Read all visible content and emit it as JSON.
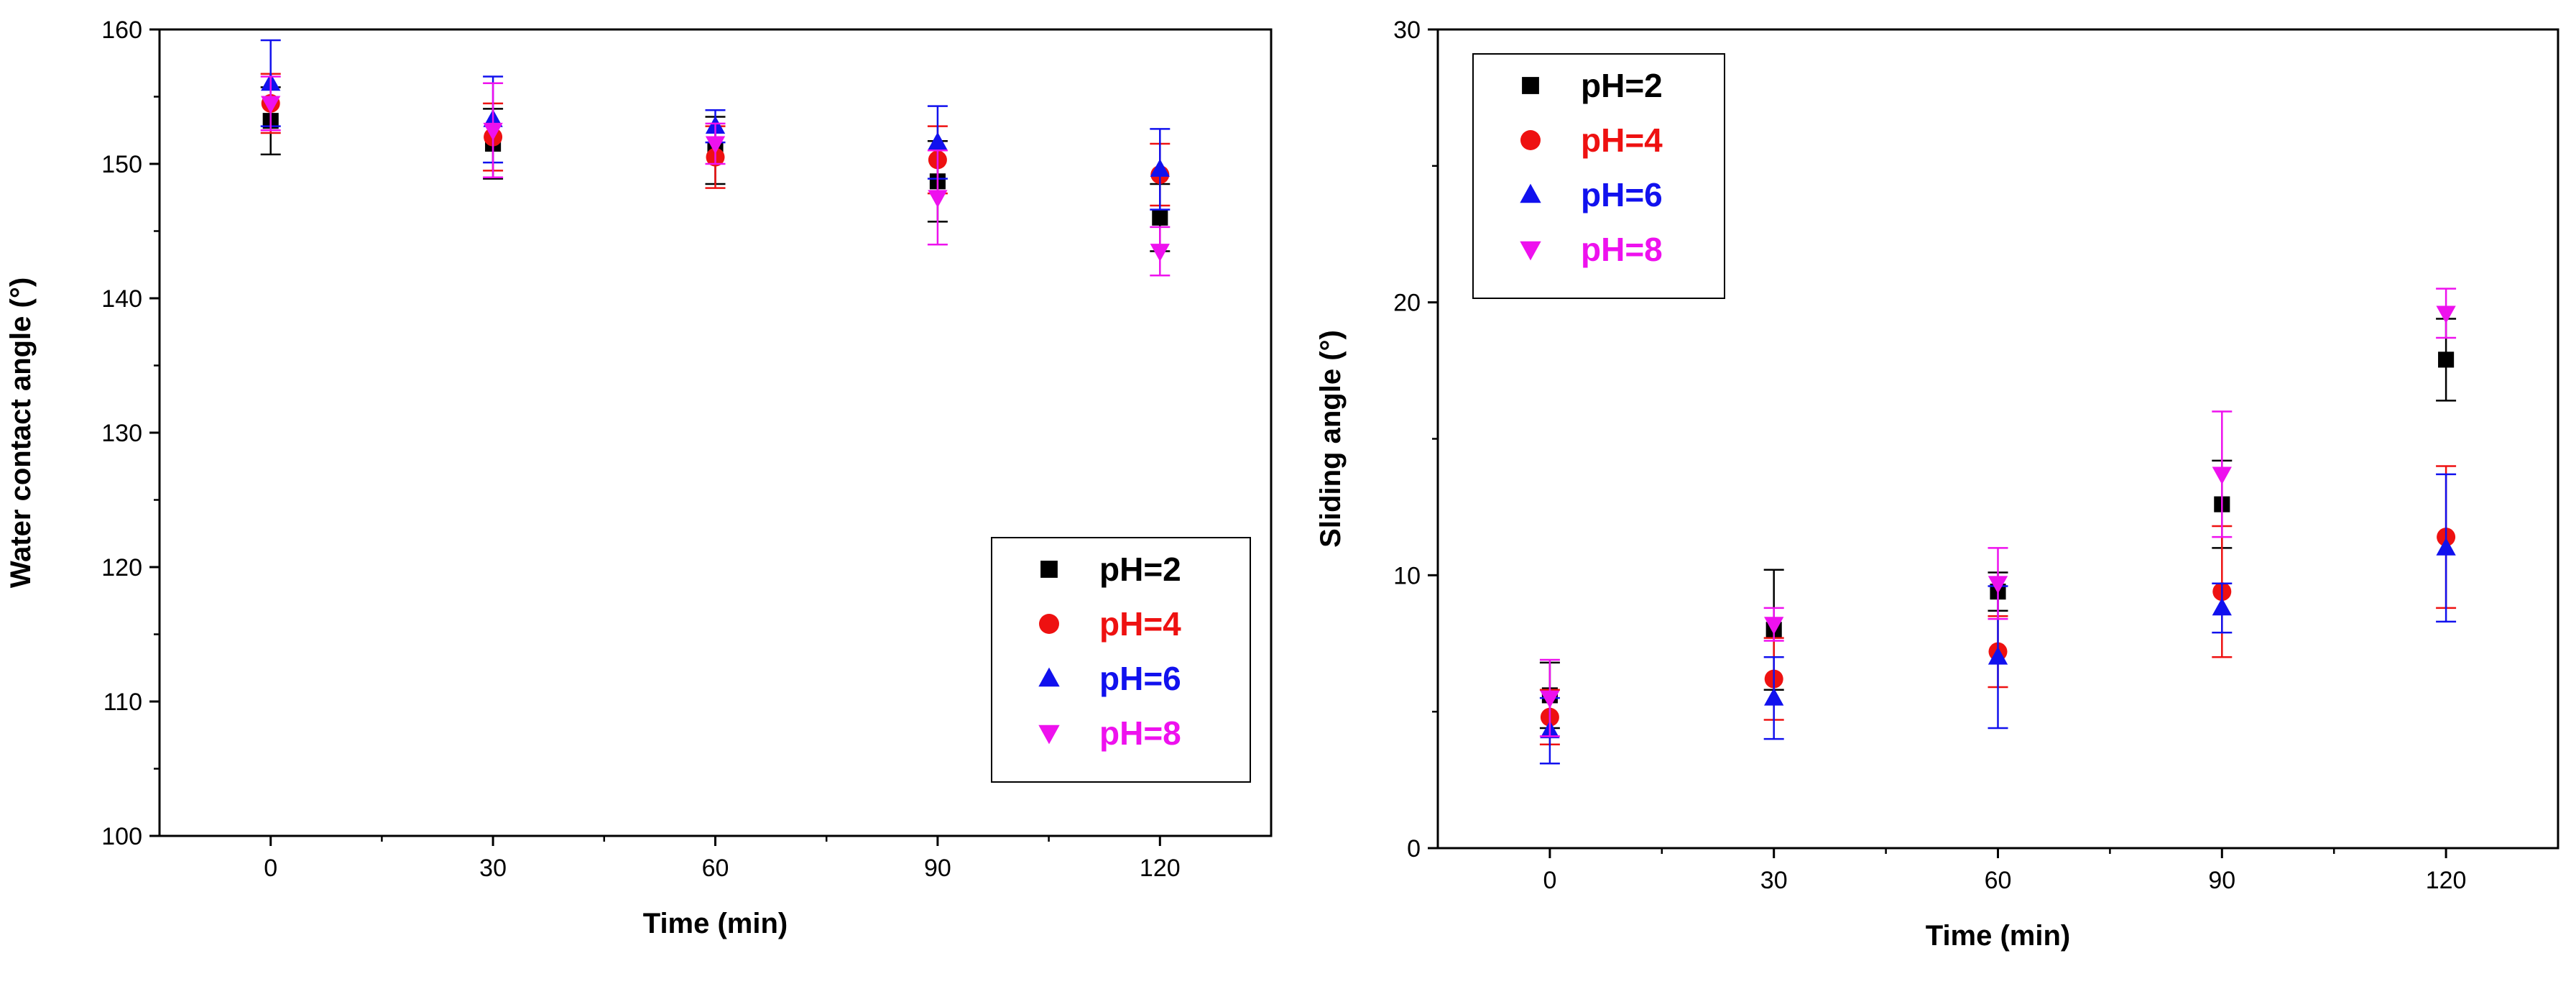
{
  "chart_data": [
    {
      "type": "scatter",
      "panel": "left",
      "title": "",
      "xlabel": "Time (min)",
      "ylabel": "Water contact angle (°)",
      "xlim": [
        -15,
        135
      ],
      "ylim": [
        100,
        160
      ],
      "xticks": [
        0,
        30,
        60,
        90,
        120
      ],
      "yticks": [
        100,
        110,
        120,
        130,
        140,
        150,
        160
      ],
      "x": [
        0,
        30,
        60,
        90,
        120
      ],
      "legend_position": "bottom-right",
      "series": [
        {
          "name": "pH=2",
          "marker": "square",
          "color": "#000000",
          "values": [
            153.2,
            151.5,
            151.0,
            148.7,
            146.0
          ],
          "errors": [
            2.5,
            2.6,
            2.5,
            3.0,
            2.5
          ]
        },
        {
          "name": "pH=4",
          "marker": "circle",
          "color": "#ee1111",
          "values": [
            154.5,
            152.0,
            150.5,
            150.3,
            149.2
          ],
          "errors": [
            2.2,
            2.5,
            2.3,
            2.5,
            2.3
          ]
        },
        {
          "name": "pH=6",
          "marker": "triangle-up",
          "color": "#1111ee",
          "values": [
            156.0,
            153.3,
            152.8,
            151.6,
            149.6
          ],
          "errors": [
            3.2,
            3.2,
            1.2,
            2.7,
            3.0
          ]
        },
        {
          "name": "pH=8",
          "marker": "triangle-down",
          "color": "#ee11ee",
          "values": [
            154.5,
            152.5,
            151.5,
            147.5,
            143.5
          ],
          "errors": [
            2.0,
            3.5,
            1.5,
            3.5,
            1.8
          ]
        }
      ]
    },
    {
      "type": "scatter",
      "panel": "right",
      "title": "",
      "xlabel": "Time (min)",
      "ylabel": "Sliding angle (°)",
      "xlim": [
        -15,
        135
      ],
      "ylim": [
        0,
        30
      ],
      "xticks": [
        0,
        30,
        60,
        90,
        120
      ],
      "yticks": [
        0,
        10,
        20,
        30
      ],
      "x": [
        0,
        30,
        60,
        90,
        120
      ],
      "legend_position": "top-left",
      "series": [
        {
          "name": "pH=2",
          "marker": "square",
          "color": "#000000",
          "values": [
            5.6,
            8.0,
            9.4,
            12.6,
            17.9
          ],
          "errors": [
            1.2,
            2.2,
            0.7,
            1.6,
            1.5
          ]
        },
        {
          "name": "pH=4",
          "marker": "circle",
          "color": "#ee1111",
          "values": [
            4.8,
            6.2,
            7.2,
            9.4,
            11.4
          ],
          "errors": [
            1.0,
            1.5,
            1.3,
            2.4,
            2.6
          ]
        },
        {
          "name": "pH=6",
          "marker": "triangle-up",
          "color": "#1111ee",
          "values": [
            4.3,
            5.5,
            7.0,
            8.8,
            11.0
          ],
          "errors": [
            1.2,
            1.5,
            2.6,
            0.9,
            2.7
          ]
        },
        {
          "name": "pH=8",
          "marker": "triangle-down",
          "color": "#ee11ee",
          "values": [
            5.5,
            8.2,
            9.7,
            13.7,
            19.6
          ],
          "errors": [
            1.4,
            0.6,
            1.3,
            2.3,
            0.9
          ]
        }
      ]
    }
  ]
}
